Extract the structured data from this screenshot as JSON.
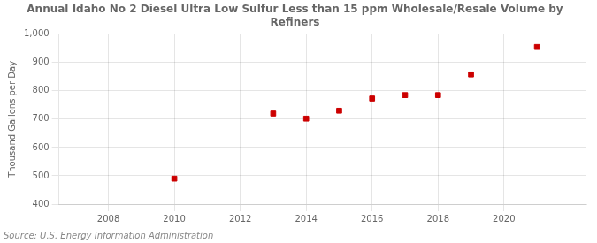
{
  "chart_data": {
    "type": "scatter",
    "title": "Annual Idaho No 2 Diesel Ultra Low Sulfur Less than 15 ppm Wholesale/Resale Volume by\nRefiners",
    "ylabel": "Thousand Gallons per Day",
    "source": "Source: U.S. Energy Information Administration",
    "x": [
      2010,
      2013,
      2014,
      2015,
      2016,
      2017,
      2018,
      2019,
      2021
    ],
    "values": [
      490,
      720,
      702,
      730,
      773,
      785,
      785,
      858,
      955
    ],
    "color": "#cc0000",
    "marker": "square",
    "xlim": [
      2006.5,
      2022.5
    ],
    "xticks": [
      2008,
      2010,
      2012,
      2014,
      2016,
      2018,
      2020
    ],
    "ylim": [
      400,
      1000
    ],
    "yticks": [
      400,
      500,
      600,
      700,
      800,
      900,
      {
        "value": 1000,
        "label": "1,000"
      }
    ],
    "grid": true
  }
}
